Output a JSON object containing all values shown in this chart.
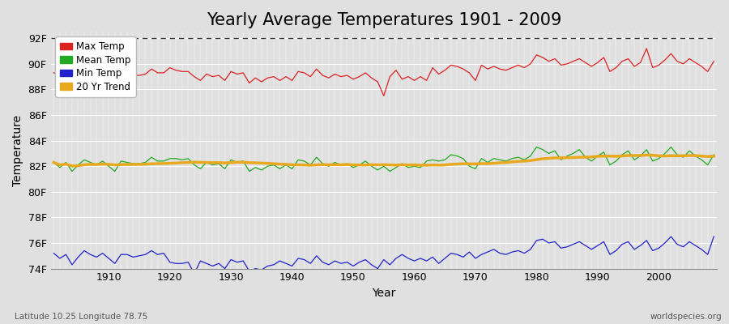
{
  "title": "Yearly Average Temperatures 1901 - 2009",
  "xlabel": "Year",
  "ylabel": "Temperature",
  "subtitle_left": "Latitude 10.25 Longitude 78.75",
  "subtitle_right": "worldspecies.org",
  "years": [
    1901,
    1902,
    1903,
    1904,
    1905,
    1906,
    1907,
    1908,
    1909,
    1910,
    1911,
    1912,
    1913,
    1914,
    1915,
    1916,
    1917,
    1918,
    1919,
    1920,
    1921,
    1922,
    1923,
    1924,
    1925,
    1926,
    1927,
    1928,
    1929,
    1930,
    1931,
    1932,
    1933,
    1934,
    1935,
    1936,
    1937,
    1938,
    1939,
    1940,
    1941,
    1942,
    1943,
    1944,
    1945,
    1946,
    1947,
    1948,
    1949,
    1950,
    1951,
    1952,
    1953,
    1954,
    1955,
    1956,
    1957,
    1958,
    1959,
    1960,
    1961,
    1962,
    1963,
    1964,
    1965,
    1966,
    1967,
    1968,
    1969,
    1970,
    1971,
    1972,
    1973,
    1974,
    1975,
    1976,
    1977,
    1978,
    1979,
    1980,
    1981,
    1982,
    1983,
    1984,
    1985,
    1986,
    1987,
    1988,
    1989,
    1990,
    1991,
    1992,
    1993,
    1994,
    1995,
    1996,
    1997,
    1998,
    1999,
    2000,
    2001,
    2002,
    2003,
    2004,
    2005,
    2006,
    2007,
    2008,
    2009
  ],
  "max_temp": [
    89.3,
    89.1,
    89.2,
    88.7,
    89.1,
    89.5,
    89.3,
    89.1,
    89.3,
    89.2,
    88.6,
    89.3,
    89.3,
    89.1,
    89.1,
    89.2,
    89.6,
    89.3,
    89.3,
    89.7,
    89.5,
    89.4,
    89.4,
    89.0,
    88.7,
    89.2,
    89.0,
    89.1,
    88.7,
    89.4,
    89.2,
    89.3,
    88.5,
    88.9,
    88.6,
    88.9,
    89.0,
    88.7,
    89.0,
    88.7,
    89.4,
    89.3,
    89.0,
    89.6,
    89.1,
    88.9,
    89.2,
    89.0,
    89.1,
    88.8,
    89.0,
    89.3,
    88.9,
    88.6,
    87.5,
    89.0,
    89.5,
    88.8,
    89.0,
    88.7,
    89.0,
    88.7,
    89.7,
    89.2,
    89.5,
    89.9,
    89.8,
    89.6,
    89.3,
    88.7,
    89.9,
    89.6,
    89.8,
    89.6,
    89.5,
    89.7,
    89.9,
    89.7,
    90.0,
    90.7,
    90.5,
    90.2,
    90.4,
    89.9,
    90.0,
    90.2,
    90.4,
    90.1,
    89.8,
    90.1,
    90.5,
    89.4,
    89.7,
    90.2,
    90.4,
    89.8,
    90.1,
    91.2,
    89.7,
    89.9,
    90.3,
    90.8,
    90.2,
    90.0,
    90.4,
    90.1,
    89.8,
    89.4,
    90.2
  ],
  "mean_temp": [
    82.3,
    81.9,
    82.3,
    81.6,
    82.1,
    82.5,
    82.3,
    82.1,
    82.4,
    82.0,
    81.6,
    82.4,
    82.3,
    82.2,
    82.2,
    82.3,
    82.7,
    82.4,
    82.4,
    82.6,
    82.6,
    82.5,
    82.6,
    82.1,
    81.8,
    82.3,
    82.1,
    82.2,
    81.8,
    82.5,
    82.3,
    82.4,
    81.6,
    81.9,
    81.7,
    82.0,
    82.1,
    81.8,
    82.1,
    81.8,
    82.5,
    82.4,
    82.1,
    82.7,
    82.2,
    82.0,
    82.3,
    82.1,
    82.2,
    81.9,
    82.1,
    82.4,
    82.0,
    81.7,
    82.0,
    81.6,
    81.9,
    82.2,
    81.9,
    82.0,
    81.9,
    82.4,
    82.5,
    82.4,
    82.5,
    82.9,
    82.8,
    82.6,
    82.0,
    81.8,
    82.6,
    82.3,
    82.6,
    82.5,
    82.4,
    82.6,
    82.7,
    82.5,
    82.8,
    83.5,
    83.3,
    83.0,
    83.2,
    82.5,
    82.8,
    83.0,
    83.3,
    82.7,
    82.4,
    82.8,
    83.1,
    82.1,
    82.4,
    82.9,
    83.2,
    82.5,
    82.8,
    83.3,
    82.4,
    82.6,
    83.0,
    83.5,
    82.9,
    82.7,
    83.2,
    82.8,
    82.5,
    82.1,
    82.9
  ],
  "min_temp": [
    75.2,
    74.8,
    75.1,
    74.3,
    74.9,
    75.4,
    75.1,
    74.9,
    75.2,
    74.8,
    74.4,
    75.1,
    75.1,
    74.9,
    75.0,
    75.1,
    75.4,
    75.1,
    75.2,
    74.5,
    74.4,
    74.4,
    74.5,
    73.6,
    74.6,
    74.4,
    74.2,
    74.4,
    74.0,
    74.7,
    74.5,
    74.6,
    73.8,
    74.0,
    73.9,
    74.2,
    74.3,
    74.6,
    74.4,
    74.2,
    74.8,
    74.7,
    74.4,
    75.0,
    74.5,
    74.3,
    74.6,
    74.4,
    74.5,
    74.2,
    74.5,
    74.7,
    74.3,
    74.0,
    74.7,
    74.3,
    74.8,
    75.1,
    74.8,
    74.6,
    74.8,
    74.6,
    74.9,
    74.4,
    74.8,
    75.2,
    75.1,
    74.9,
    75.3,
    74.8,
    75.1,
    75.3,
    75.5,
    75.2,
    75.1,
    75.3,
    75.4,
    75.2,
    75.5,
    76.2,
    76.3,
    76.0,
    76.1,
    75.6,
    75.7,
    75.9,
    76.1,
    75.8,
    75.5,
    75.8,
    76.1,
    75.1,
    75.4,
    75.9,
    76.1,
    75.5,
    75.8,
    76.2,
    75.4,
    75.6,
    76.0,
    76.5,
    75.9,
    75.7,
    76.1,
    75.8,
    75.5,
    75.1,
    76.5
  ],
  "ylim": [
    74.0,
    92.5
  ],
  "yticks": [
    74,
    76,
    78,
    80,
    82,
    84,
    86,
    88,
    90,
    92
  ],
  "ytick_labels": [
    "74F",
    "76F",
    "78F",
    "80F",
    "82F",
    "84F",
    "86F",
    "88F",
    "90F",
    "92F"
  ],
  "xticks": [
    1910,
    1920,
    1930,
    1940,
    1950,
    1960,
    1970,
    1980,
    1990,
    2000
  ],
  "dashed_line_y": 92.0,
  "color_max": "#dd2222",
  "color_mean": "#22aa22",
  "color_min": "#2222cc",
  "color_trend": "#e8a820",
  "bg_color": "#e0e0e0",
  "plot_bg_color": "#e0e0e0",
  "title_fontsize": 15,
  "axis_fontsize": 10,
  "tick_fontsize": 9,
  "linewidth": 0.9,
  "trend_linewidth": 2.5
}
